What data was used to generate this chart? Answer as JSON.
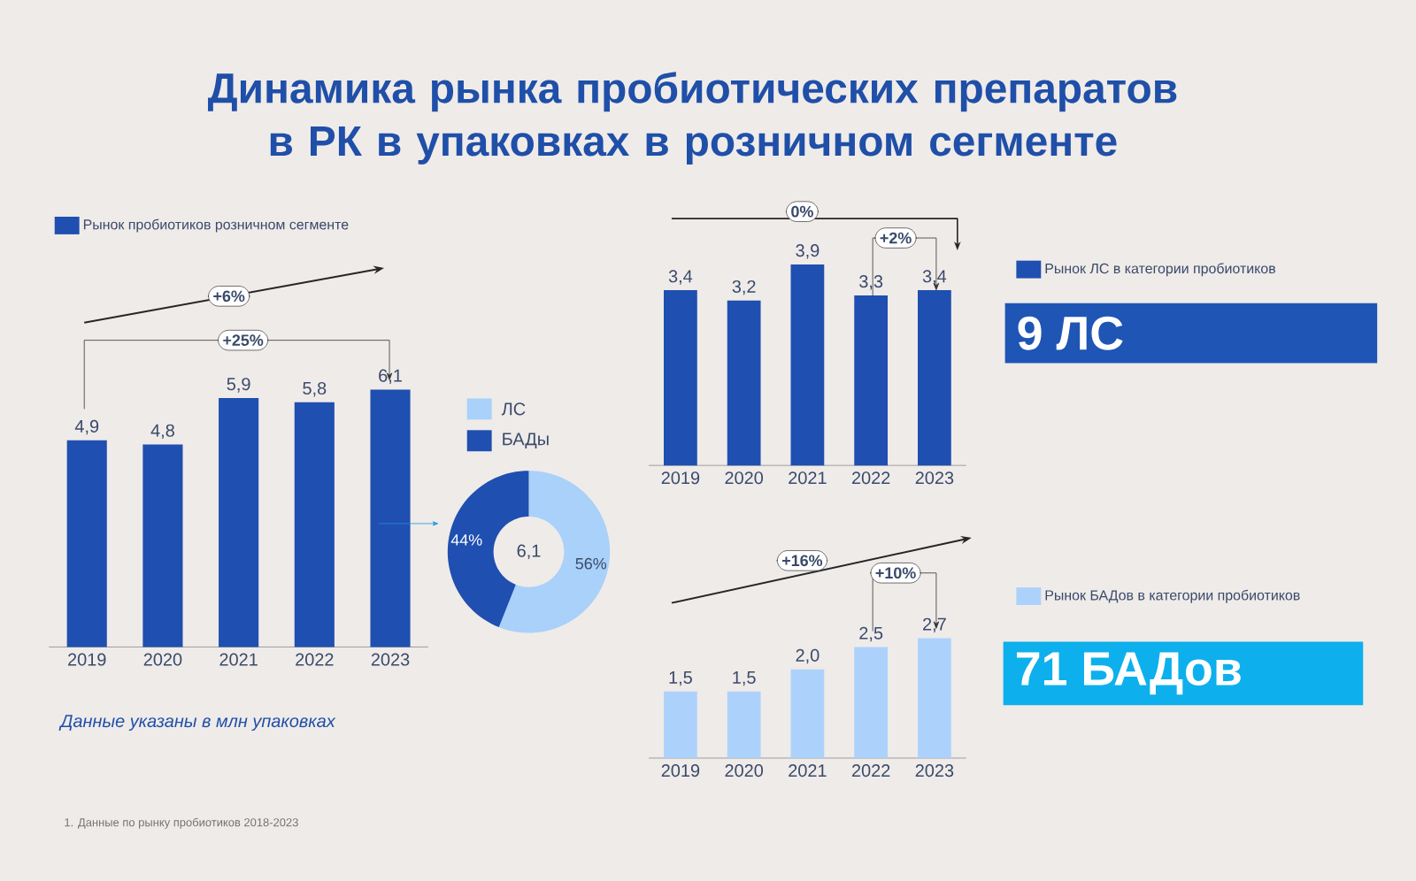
{
  "chart_data": [
    {
      "type": "bar",
      "title": "Динамика рынка пробиотических препаратов в РК в упаковках в розничном сегменте",
      "categories": [
        "2019",
        "2020",
        "2021",
        "2022",
        "2023"
      ],
      "series": [
        {
          "name": "Рынок пробиотиков розничном сегменте",
          "color": "#1f4fb0",
          "values": [
            4.9,
            4.8,
            5.9,
            5.8,
            6.1
          ],
          "value_labels": [
            "4,9",
            "4,8",
            "5,9",
            "5,8",
            "6,1"
          ]
        }
      ],
      "legend": "top left",
      "annotations": [
        "+6%",
        "+25%",
        "Данные указаны в млн упаковках",
        "1. Данные по рынку пробиотиков 2018-2023"
      ]
    },
    {
      "type": "donut",
      "categories": [
        "ЛС",
        "БАДы"
      ],
      "values": [
        56,
        44
      ],
      "colors": [
        "#a9d1fa",
        "#1f4fb0"
      ],
      "value_labels": [
        "56%",
        "44%"
      ],
      "legend": "top",
      "annotations": [
        "6,1"
      ]
    },
    {
      "type": "bar",
      "categories": [
        "2019",
        "2020",
        "2021",
        "2022",
        "2023"
      ],
      "series": [
        {
          "name": "Рынок ЛС в категории пробиотиков",
          "color": "#1f4fb0",
          "values": [
            3.4,
            3.2,
            3.9,
            3.3,
            3.4
          ],
          "value_labels": [
            "3,4",
            "3,2",
            "3,9",
            "3,3",
            "3,4"
          ]
        }
      ],
      "legend": "right",
      "annotations": [
        "0%",
        "+2%"
      ]
    },
    {
      "type": "bar",
      "categories": [
        "2019",
        "2020",
        "2021",
        "2022",
        "2023"
      ],
      "series": [
        {
          "name": "Рынок БАДов в категории пробиотиков",
          "color": "#acd2fb",
          "values": [
            1.5,
            1.5,
            2.0,
            2.5,
            2.7
          ],
          "value_labels": [
            "1,5",
            "1,5",
            "2,0",
            "2,5",
            "2,7"
          ]
        }
      ],
      "legend": "right",
      "annotations": [
        "+16%",
        "+10%"
      ]
    },
    {
      "type": "other",
      "annotations": [
        "9 ЛС"
      ]
    },
    {
      "type": "other",
      "annotations": [
        "71 БАДов"
      ]
    }
  ]
}
